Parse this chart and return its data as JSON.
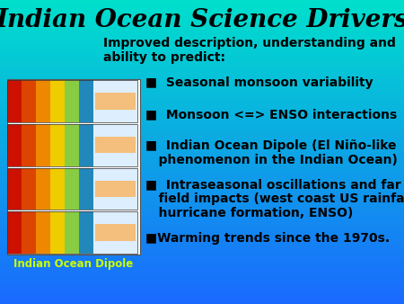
{
  "title": "Indian Ocean Science Drivers",
  "subtitle": "Improved description, understanding and\nability to predict:",
  "bullets": [
    "■  Seasonal monsoon variability",
    "■  Monsoon <=> ENSO interactions",
    "■  Indian Ocean Dipole (El Niño-like\n   phenomenon in the Indian Ocean)",
    "■  Intraseasonal oscillations and far\n   field impacts (west coast US rainfall,\n   hurricane formation, ENSO)",
    "■Warming trends since the 1970s."
  ],
  "image_label": "Indian Ocean Dipole",
  "bg_color_top": "#00e0cc",
  "bg_color_bottom": "#1a6aff",
  "text_color": "#000000",
  "title_color": "#000000",
  "image_label_color": "#ccff00",
  "title_fontsize": 20,
  "subtitle_fontsize": 10,
  "bullet_fontsize": 10,
  "image_label_fontsize": 8.5,
  "fig_width": 4.5,
  "fig_height": 3.38,
  "dpi": 100
}
